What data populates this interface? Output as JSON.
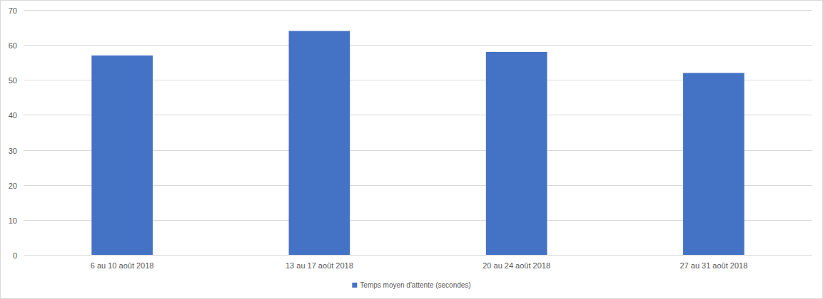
{
  "chart_data": {
    "type": "bar",
    "categories": [
      "6 au 10 août 2018",
      "13 au 17 août 2018",
      "20 au 24 août 2018",
      "27 au 31 août 2018"
    ],
    "series": [
      {
        "name": "Temps moyen d'attente (secondes)",
        "color": "#4472c4",
        "values": [
          57,
          64,
          58,
          52
        ]
      }
    ],
    "ylim": [
      0,
      70
    ],
    "yticks": [
      0,
      10,
      20,
      30,
      40,
      50,
      60,
      70
    ],
    "grid": true,
    "legend": "bottom"
  }
}
